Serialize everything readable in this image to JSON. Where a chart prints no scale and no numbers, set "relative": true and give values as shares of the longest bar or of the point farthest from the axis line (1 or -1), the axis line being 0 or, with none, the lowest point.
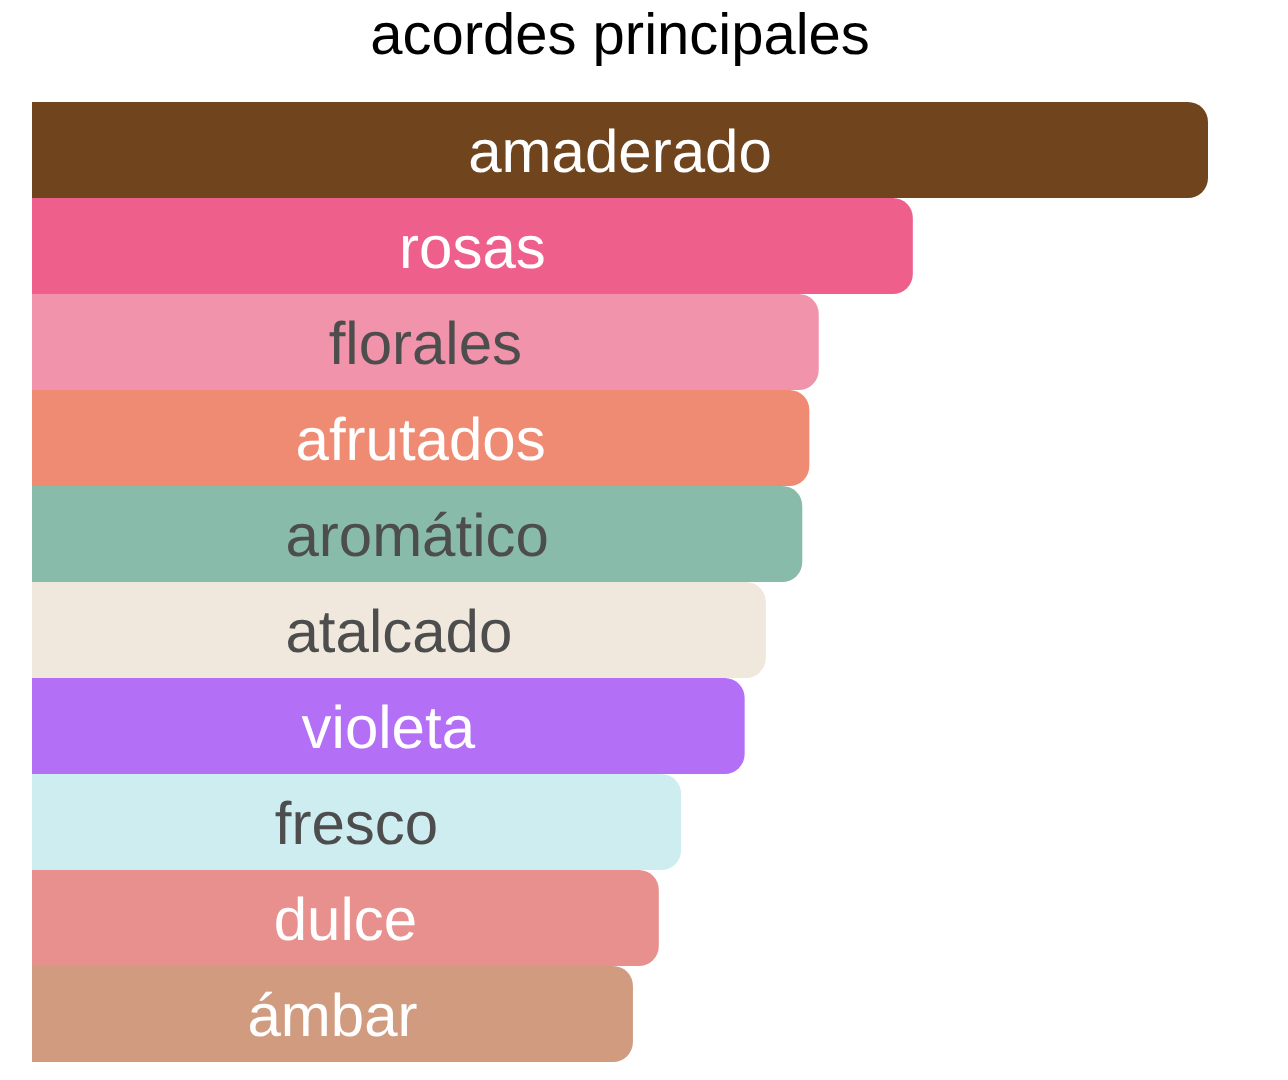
{
  "chart_data": {
    "type": "bar",
    "title": "acordes principales",
    "orientation": "horizontal",
    "relative": true,
    "categories": [
      "amaderado",
      "rosas",
      "florales",
      "afrutados",
      "aromático",
      "atalcado",
      "violeta",
      "fresco",
      "dulce",
      "ámbar"
    ],
    "values": [
      1,
      0.749,
      0.669,
      0.661,
      0.655,
      0.624,
      0.606,
      0.552,
      0.533,
      0.511
    ],
    "colors": [
      "#70451e",
      "#ee5f8c",
      "#f093ab",
      "#ef8b73",
      "#88bbaa",
      "#f0e7dd",
      "#b46ff7",
      "#cdedf1",
      "#e8908d",
      "#d09b7f"
    ]
  }
}
